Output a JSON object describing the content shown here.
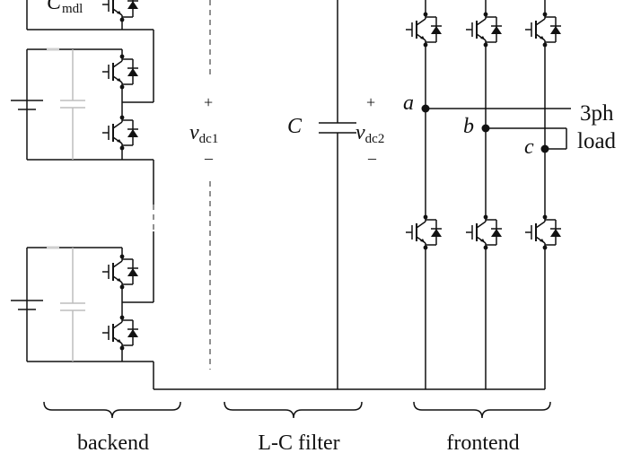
{
  "labels": {
    "cmdl_main": "C",
    "cmdl_sub": "mdl",
    "vdc1_main": "v",
    "vdc1_sub": "dc1",
    "vdc2_main": "v",
    "vdc2_sub": "dc2",
    "capacitor": "C",
    "plus": "+",
    "minus": "–",
    "phase_a": "a",
    "phase_b": "b",
    "phase_c": "c",
    "load_line1": "3ph",
    "load_line2": "load"
  },
  "sections": {
    "backend": "backend",
    "lc_filter": "L-C filter",
    "frontend": "frontend"
  }
}
